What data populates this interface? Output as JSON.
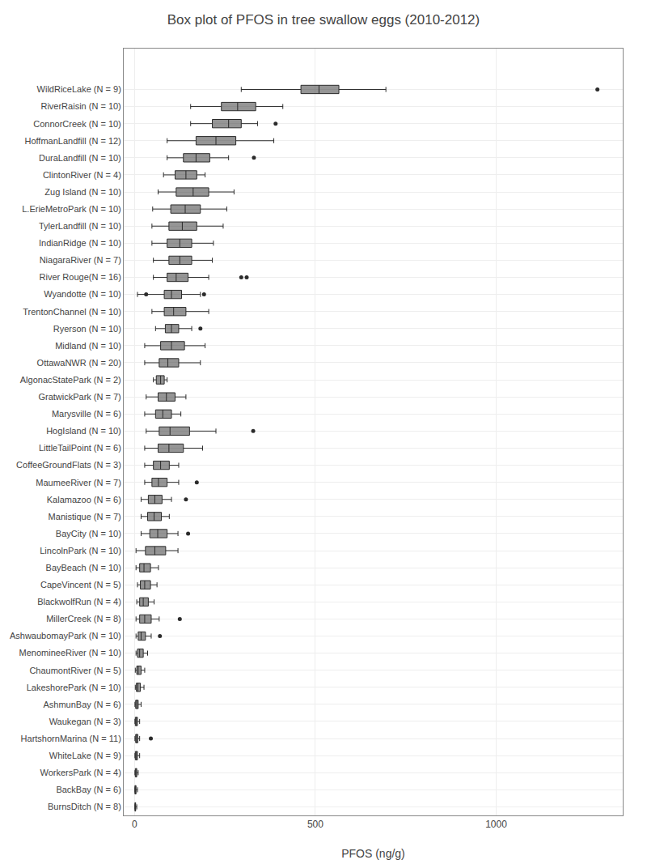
{
  "chart_data": {
    "type": "box",
    "orientation": "horizontal",
    "title": "Box plot of PFOS in tree swallow eggs (2010-2012)",
    "xlabel": "PFOS (ng/g)",
    "categories": [
      "WildRiceLake (N = 9)",
      "RiverRaisin (N = 10)",
      "ConnorCreek (N = 10)",
      "HoffmanLandfill (N = 12)",
      "DuraLandfill (N = 10)",
      "ClintonRiver (N = 4)",
      "Zug Island (N = 10)",
      "L.ErieMetroPark (N = 10)",
      "TylerLandfill (N = 10)",
      "IndianRidge (N = 10)",
      "NiagaraRiver (N = 7)",
      "River Rouge(N = 16)",
      "Wyandotte (N = 10)",
      "TrentonChannel (N = 10)",
      "Ryerson (N = 10)",
      "Midland (N = 10)",
      "OttawaNWR (N = 20)",
      "AlgonacStatePark (N = 2)",
      "GratwickPark (N = 7)",
      "Marysville (N = 6)",
      "HogIsland (N = 10)",
      "LittleTailPoint (N = 6)",
      "CoffeeGroundFlats (N = 3)",
      "MaumeeRiver (N = 7)",
      "Kalamazoo (N = 6)",
      "Manistique (N = 7)",
      "BayCity (N = 10)",
      "LincolnPark (N = 10)",
      "BayBeach (N = 10)",
      "CapeVincent (N = 5)",
      "BlackwolfRun (N = 4)",
      "MillerCreek (N = 8)",
      "AshwaubomayPark (N = 10)",
      "MenomineeRiver (N = 10)",
      "ChaumontRiver (N = 5)",
      "LakeshorePark (N = 10)",
      "AshmunBay (N = 6)",
      "Waukegan (N = 3)",
      "HartshornMarina (N = 11)",
      "WhiteLake (N = 9)",
      "WorkersPark (N = 4)",
      "BackBay (N = 6)",
      "BurnsDitch (N = 8)"
    ],
    "whislo": [
      295,
      155,
      155,
      90,
      90,
      80,
      65,
      50,
      48,
      48,
      52,
      52,
      8,
      48,
      58,
      28,
      28,
      52,
      32,
      28,
      32,
      28,
      28,
      28,
      18,
      18,
      18,
      4,
      4,
      8,
      6,
      4,
      4,
      4,
      2,
      2,
      1,
      1,
      1,
      1,
      1,
      1,
      1
    ],
    "q1": [
      460,
      240,
      215,
      170,
      135,
      112,
      115,
      100,
      95,
      90,
      95,
      90,
      82,
      82,
      85,
      72,
      68,
      60,
      65,
      58,
      68,
      65,
      52,
      48,
      38,
      36,
      42,
      30,
      14,
      16,
      14,
      14,
      10,
      8,
      6,
      5,
      3,
      2,
      3,
      2,
      2,
      1,
      1
    ],
    "median": [
      510,
      285,
      260,
      225,
      170,
      142,
      162,
      140,
      132,
      125,
      125,
      115,
      102,
      108,
      102,
      102,
      92,
      72,
      88,
      78,
      98,
      95,
      72,
      66,
      56,
      54,
      64,
      56,
      26,
      28,
      24,
      28,
      18,
      14,
      10,
      9,
      6,
      4,
      5,
      4,
      3,
      2,
      2
    ],
    "q3": [
      565,
      335,
      295,
      280,
      208,
      172,
      205,
      182,
      172,
      158,
      158,
      148,
      130,
      142,
      122,
      138,
      122,
      82,
      112,
      102,
      152,
      135,
      96,
      90,
      76,
      74,
      90,
      86,
      44,
      44,
      38,
      46,
      30,
      24,
      18,
      16,
      10,
      8,
      9,
      8,
      6,
      4,
      3
    ],
    "whishi": [
      695,
      410,
      340,
      385,
      260,
      195,
      275,
      255,
      245,
      218,
      215,
      205,
      182,
      205,
      158,
      195,
      182,
      90,
      142,
      128,
      225,
      188,
      122,
      122,
      102,
      96,
      120,
      120,
      66,
      62,
      54,
      68,
      46,
      36,
      28,
      26,
      18,
      14,
      14,
      14,
      10,
      8,
      6
    ],
    "fliers": [
      [
        1280
      ],
      [],
      [
        390
      ],
      [],
      [
        330
      ],
      [],
      [],
      [],
      [],
      [],
      [],
      [
        295,
        310
      ],
      [
        32,
        192
      ],
      [],
      [
        182
      ],
      [],
      [],
      [],
      [],
      [],
      [
        328
      ],
      [],
      [],
      [
        172
      ],
      [
        142
      ],
      [],
      [
        148
      ],
      [],
      [],
      [],
      [],
      [
        125
      ],
      [
        70
      ],
      [],
      [],
      [],
      [],
      [],
      [
        45
      ],
      [],
      [],
      [],
      []
    ],
    "xlim": [
      -30,
      1350
    ],
    "xticks": [
      0,
      500,
      1000
    ],
    "grid": true,
    "color": "#2b2b2b"
  }
}
